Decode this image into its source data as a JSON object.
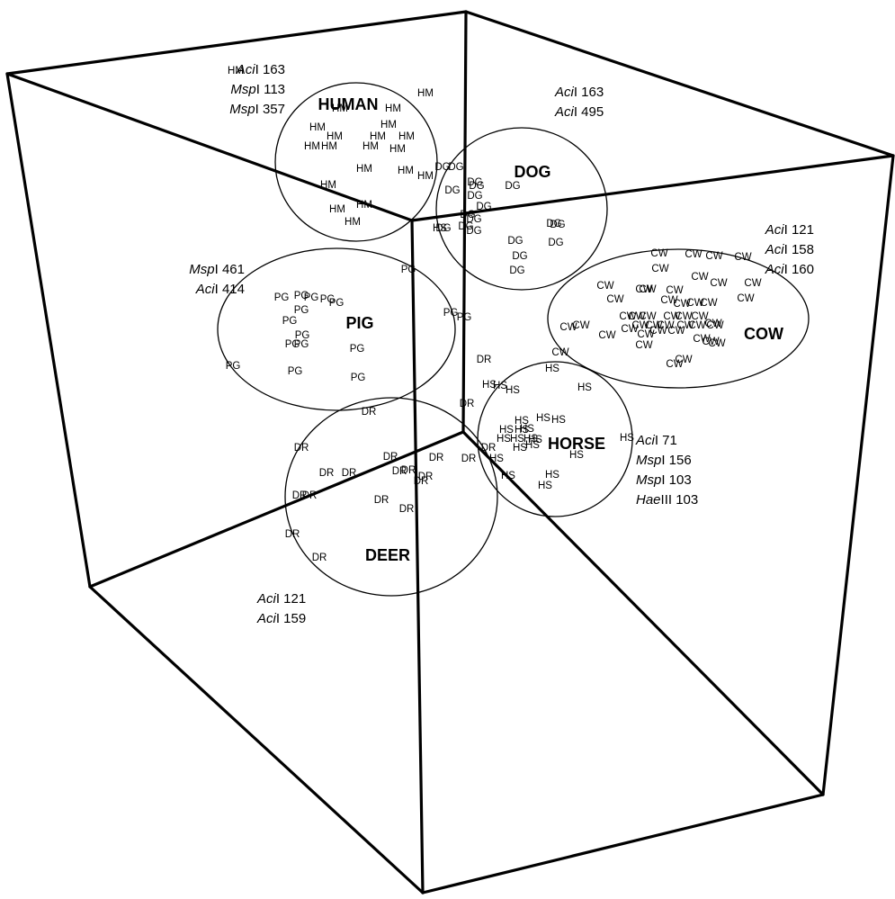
{
  "chart_data": {
    "type": "scatter",
    "title": "",
    "groups": [
      {
        "code": "HM",
        "name": "HUMAN",
        "count": 20
      },
      {
        "code": "DG",
        "name": "DOG",
        "count": 19
      },
      {
        "code": "PG",
        "name": "PIG",
        "count": 17
      },
      {
        "code": "CW",
        "name": "COW",
        "count": 45
      },
      {
        "code": "HS",
        "name": "HORSE",
        "count": 24
      },
      {
        "code": "DR",
        "name": "DEER",
        "count": 20
      }
    ],
    "annotations": [
      {
        "group": "HUMAN",
        "lines": [
          {
            "enzyme": "Aci",
            "suffix": "I",
            "value": "163"
          },
          {
            "enzyme": "Msp",
            "suffix": "I",
            "value": "113"
          },
          {
            "enzyme": "Msp",
            "suffix": "I",
            "value": "357"
          }
        ]
      },
      {
        "group": "DOG",
        "lines": [
          {
            "enzyme": "Aci",
            "suffix": "I",
            "value": "163"
          },
          {
            "enzyme": "Aci",
            "suffix": "I",
            "value": "495"
          }
        ]
      },
      {
        "group": "COW",
        "lines": [
          {
            "enzyme": "Aci",
            "suffix": "I",
            "value": "121"
          },
          {
            "enzyme": "Aci",
            "suffix": "I",
            "value": "158"
          },
          {
            "enzyme": "Aci",
            "suffix": "I",
            "value": "160"
          }
        ]
      },
      {
        "group": "PIG",
        "lines": [
          {
            "enzyme": "Msp",
            "suffix": "I",
            "value": "461"
          },
          {
            "enzyme": "Aci",
            "suffix": "I",
            "value": "414"
          }
        ]
      },
      {
        "group": "HORSE",
        "lines": [
          {
            "enzyme": "Aci",
            "suffix": "I",
            "value": "71"
          },
          {
            "enzyme": "Msp",
            "suffix": "I",
            "value": "156"
          },
          {
            "enzyme": "Msp",
            "suffix": "I",
            "value": "103"
          },
          {
            "enzyme": "Hae",
            "suffix": "III",
            "value": "103"
          }
        ]
      },
      {
        "group": "DEER",
        "lines": [
          {
            "enzyme": "Aci",
            "suffix": "I",
            "value": "121"
          },
          {
            "enzyme": "Aci",
            "suffix": "I",
            "value": "159"
          }
        ]
      }
    ],
    "xlabel": "",
    "ylabel": "",
    "grid": false
  }
}
